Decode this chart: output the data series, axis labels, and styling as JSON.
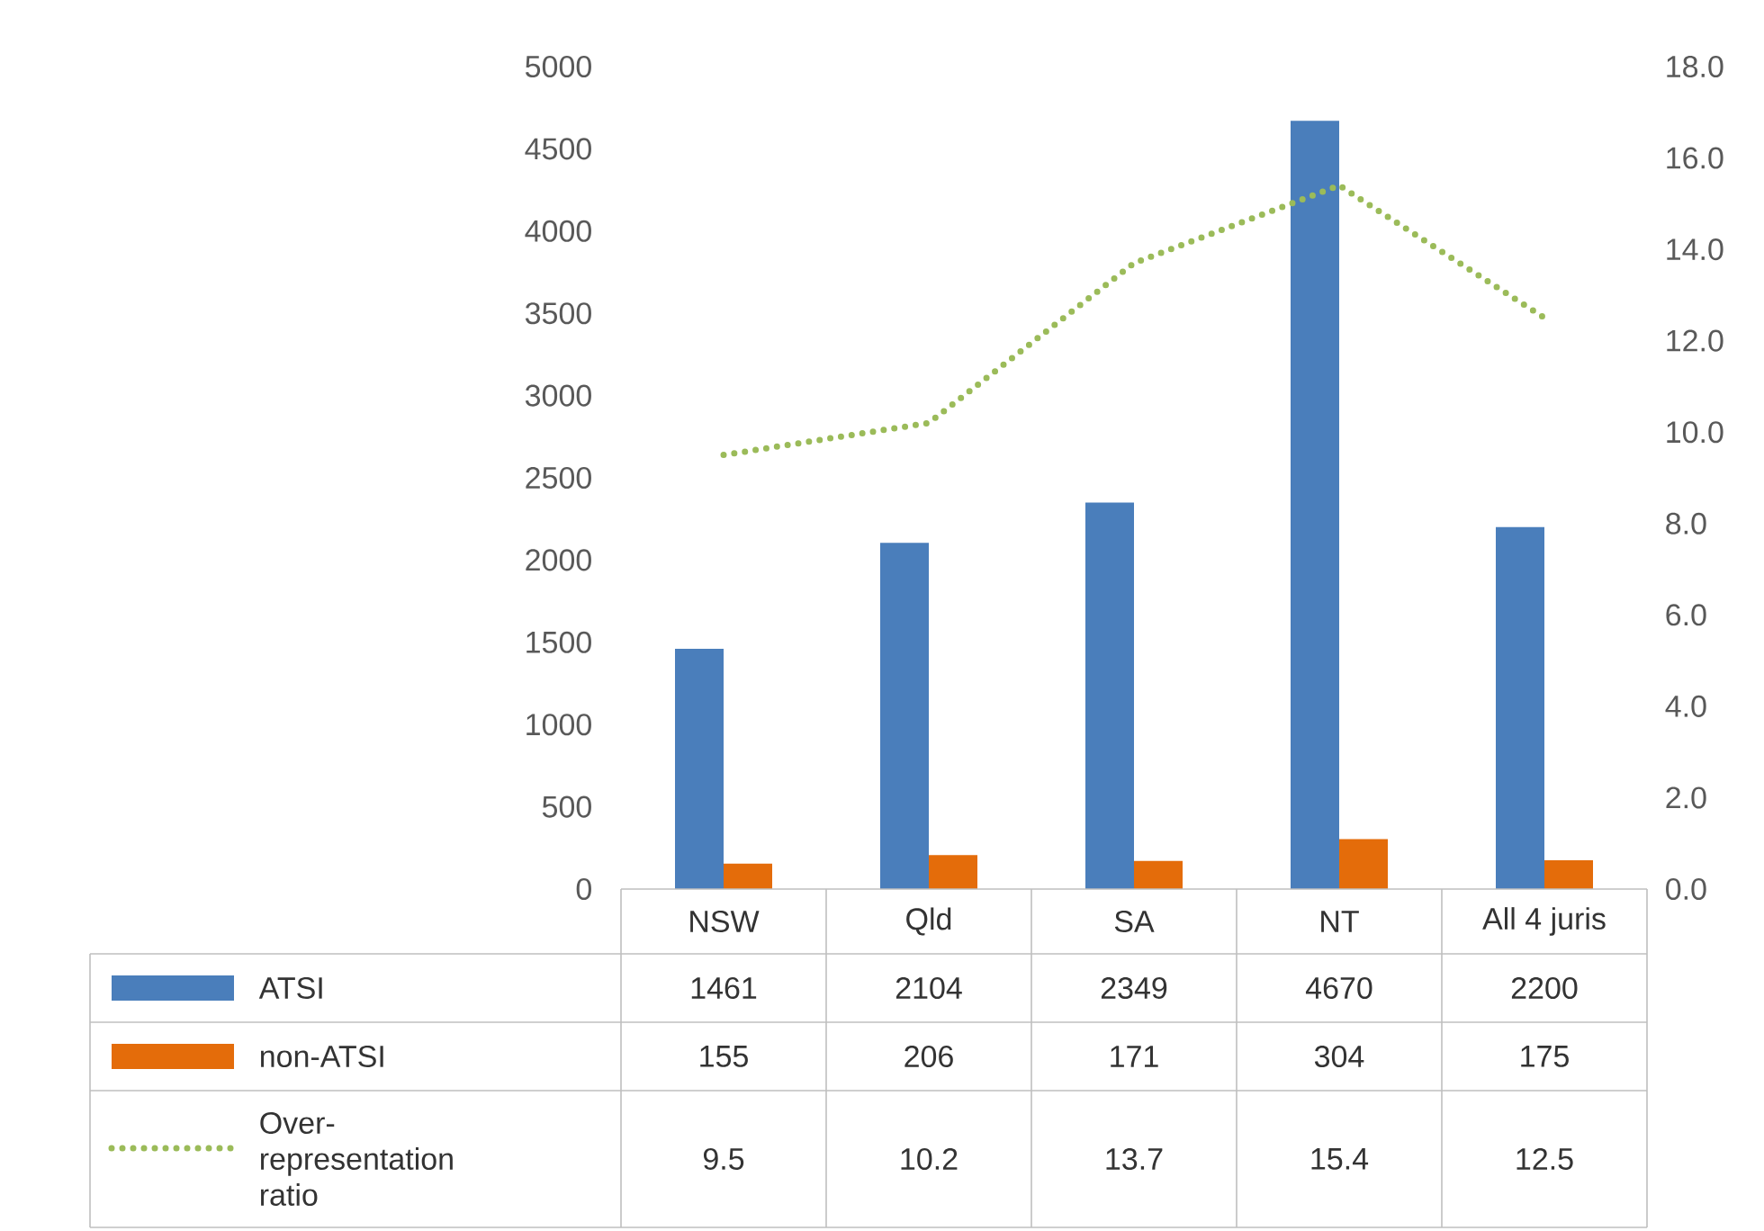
{
  "chart_data": {
    "type": "bar",
    "categories": [
      "NSW",
      "Qld",
      "SA",
      "NT",
      "All 4 juris"
    ],
    "series": [
      {
        "name": "ATSI",
        "color": "#4a7ebb",
        "values": [
          1461,
          2104,
          2349,
          4670,
          2200
        ]
      },
      {
        "name": "non-ATSI",
        "color": "#e46c0a",
        "values": [
          155,
          206,
          171,
          304,
          175
        ]
      },
      {
        "name": "Over-representation ratio",
        "type": "line",
        "axis": "y2",
        "line_style": "dotted",
        "color": "#9bbb59",
        "values": [
          9.5,
          10.2,
          13.7,
          15.4,
          12.5
        ]
      }
    ],
    "ylim": [
      0,
      5000
    ],
    "yticks": [
      0,
      500,
      1000,
      1500,
      2000,
      2500,
      3000,
      3500,
      4000,
      4500,
      5000
    ],
    "y2lim": [
      0,
      18
    ],
    "y2ticks": [
      {
        "value": 0,
        "label": "0.0"
      },
      {
        "value": 2,
        "label": "2.0"
      },
      {
        "value": 4,
        "label": "4.0"
      },
      {
        "value": 6,
        "label": "6.0"
      },
      {
        "value": 8,
        "label": "8.0"
      },
      {
        "value": 10,
        "label": "10.0"
      },
      {
        "value": 12,
        "label": "12.0"
      },
      {
        "value": 14,
        "label": "14.0"
      },
      {
        "value": 16,
        "label": "16.0"
      },
      {
        "value": 18,
        "label": "18.0"
      }
    ],
    "data_labels": true,
    "legend": "bottom"
  }
}
